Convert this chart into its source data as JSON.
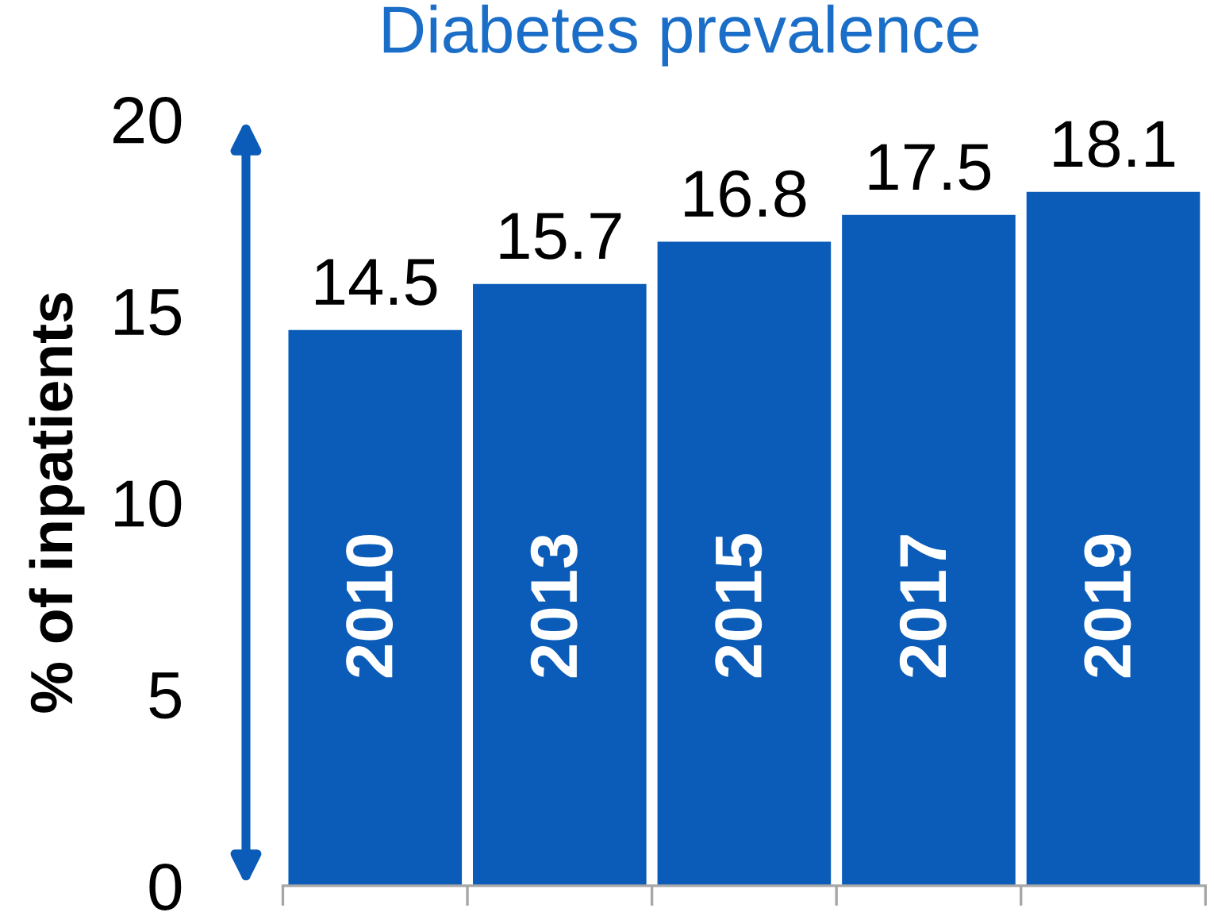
{
  "chart_data": {
    "type": "bar",
    "title": "Diabetes prevalence",
    "ylabel": "% of inpatients",
    "categories": [
      "2010",
      "2013",
      "2015",
      "2017",
      "2019"
    ],
    "values": [
      14.5,
      15.7,
      16.8,
      17.5,
      18.1
    ],
    "color": "#0a5cb8",
    "ylim": [
      0,
      20
    ],
    "yticks": [
      0,
      5,
      10,
      15,
      20
    ],
    "grid": false,
    "data_labels": true
  }
}
